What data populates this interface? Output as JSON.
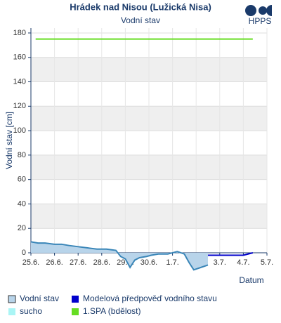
{
  "chart_data": {
    "type": "line",
    "title": "Hrádek nad Nisou (Lužická Nisa)",
    "subtitle": "Vodní stav",
    "logo": "HPPS",
    "y_label": "Vodní stav [cm]",
    "x_label": "Datum",
    "ylim": [
      0,
      184
    ],
    "yticks": [
      0,
      20,
      40,
      60,
      80,
      100,
      120,
      140,
      160,
      180
    ],
    "xlim": [
      0,
      10
    ],
    "xticks": [
      {
        "value": 0,
        "label": "25.6."
      },
      {
        "value": 1,
        "label": "26.6."
      },
      {
        "value": 2,
        "label": "27.6."
      },
      {
        "value": 3,
        "label": "28.6."
      },
      {
        "value": 4,
        "label": "29.6."
      },
      {
        "value": 5,
        "label": "30.6."
      },
      {
        "value": 6,
        "label": "1.7."
      },
      {
        "value": 7,
        "label": "2.7."
      },
      {
        "value": 8,
        "label": "3.7."
      },
      {
        "value": 9,
        "label": "4.7."
      },
      {
        "value": 10,
        "label": "5.7."
      }
    ],
    "grid": true,
    "series": [
      {
        "name": "Vodní stav",
        "color": "#3a86b8",
        "fill": "#b8d4ea",
        "x": [
          0,
          0.3,
          0.6,
          1,
          1.3,
          1.6,
          2,
          2.4,
          2.8,
          3.2,
          3.6,
          3.8,
          4.0,
          4.2,
          4.4,
          4.6,
          4.9,
          5.1,
          5.4,
          5.8,
          6.2,
          6.5,
          6.7,
          6.9,
          7.2,
          7.5
        ],
        "values": [
          9,
          8,
          8,
          7,
          7,
          6,
          5,
          4,
          3,
          3,
          2,
          -3,
          -5,
          -12,
          -6,
          -4,
          -3,
          -2,
          -1,
          -1,
          1,
          -1,
          -8,
          -14,
          -12,
          -10
        ]
      },
      {
        "name": "Modelová předpověď vodního stavu",
        "color": "#0000cc",
        "x": [
          7.5,
          8.0,
          8.5,
          9.0,
          9.4
        ],
        "values": [
          -2,
          -2,
          -2,
          -2,
          0
        ]
      },
      {
        "name": "sucho",
        "color": "#aaf5f5",
        "x": [],
        "values": []
      },
      {
        "name": "1.SPA (bdělost)",
        "color": "#66dd22",
        "x": [
          0.2,
          9.4
        ],
        "values": [
          175,
          175
        ]
      }
    ]
  }
}
